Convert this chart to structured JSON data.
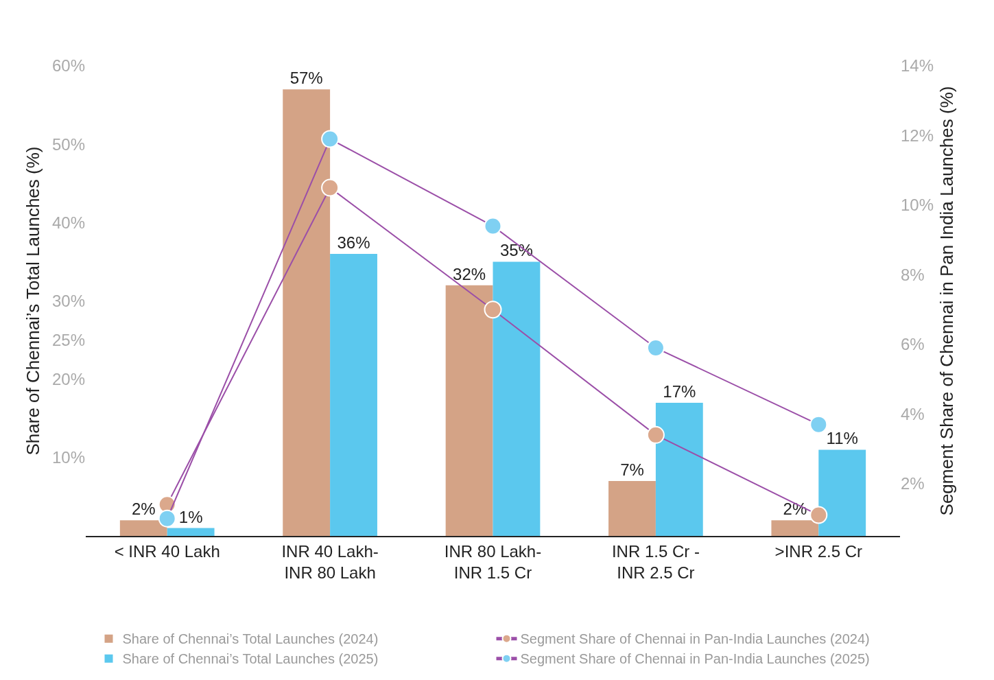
{
  "chart_data": {
    "type": "bar",
    "ylabel": "Share of Chennai’s Total Launches (%)",
    "y2label": "Segment Share of Chennai in Pan India Launches (%)",
    "categories": [
      "< INR 40 Lakh",
      "INR 40 Lakh-\nINR 80 Lakh",
      "INR 80 Lakh-\nINR 1.5 Cr",
      "INR 1.5 Cr -\nINR 2.5 Cr",
      ">INR 2.5 Cr"
    ],
    "series": [
      {
        "name": "Share of Chennai’s Total Launches (2024)",
        "color": "#d4a386",
        "values": [
          2,
          57,
          32,
          7,
          2
        ],
        "value_labels": [
          "2%",
          "57%",
          "32%",
          "7%",
          "2%"
        ]
      },
      {
        "name": "Segment Share of Chennai in Pan-India Launches (2024)",
        "type": "line",
        "axis": "y2",
        "color": "#9b4fa8",
        "colors": [
          "#dba88c",
          "#dba88c",
          "#dba88c",
          "#dba88c",
          "#dba88c"
        ],
        "values": [
          1.4,
          10.5,
          7.0,
          3.4,
          1.1
        ]
      },
      {
        "name": "Share of Chennai’s Total Launches (2025)",
        "color": "#5bc8ee",
        "values": [
          1,
          36,
          35,
          17,
          11
        ],
        "value_labels": [
          "1%",
          "36%",
          "35%",
          "17%",
          "11%"
        ]
      },
      {
        "name": "Segment Share of Chennai in Pan-India Launches (2025)",
        "type": "line",
        "axis": "y2",
        "color": "#9b4fa8",
        "colors": [
          "#7fd0f2",
          "#7fd0f2",
          "#7fd0f2",
          "#7fd0f2",
          "#7fd0f2"
        ],
        "values": [
          1.0,
          11.9,
          9.4,
          5.9,
          3.7
        ]
      }
    ],
    "ylim": [
      0,
      60
    ],
    "yticks": [
      {
        "value": 10,
        "label": "10%"
      },
      {
        "value": 20,
        "label": "20%"
      },
      {
        "value": 25,
        "label": "25%"
      },
      {
        "value": 30,
        "label": "30%"
      },
      {
        "value": 40,
        "label": "40%"
      },
      {
        "value": 50,
        "label": "50%"
      },
      {
        "value": 60,
        "label": "60%"
      }
    ],
    "y2lim": [
      0.5,
      14
    ],
    "y2ticks": [
      {
        "value": 2,
        "label": "2%"
      },
      {
        "value": 4,
        "label": "4%"
      },
      {
        "value": 6,
        "label": "6%"
      },
      {
        "value": 8,
        "label": "8%"
      },
      {
        "value": 10,
        "label": "10%"
      },
      {
        "value": 12,
        "label": "12%"
      },
      {
        "value": 14,
        "label": "14%"
      }
    ],
    "grid": false,
    "legend": "bottom",
    "marker": "circle",
    "line_style": "solid"
  }
}
